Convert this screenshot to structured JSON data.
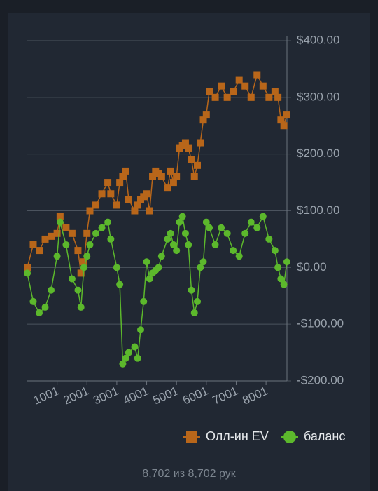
{
  "chart_data": {
    "type": "line",
    "x": [
      1,
      200,
      400,
      600,
      800,
      1000,
      1100,
      1300,
      1500,
      1700,
      1800,
      1900,
      2000,
      2100,
      2300,
      2500,
      2700,
      2800,
      3000,
      3100,
      3200,
      3300,
      3400,
      3600,
      3700,
      3800,
      3900,
      4000,
      4100,
      4200,
      4300,
      4400,
      4500,
      4700,
      4800,
      4900,
      5000,
      5100,
      5200,
      5300,
      5400,
      5500,
      5600,
      5700,
      5800,
      5900,
      6000,
      6100,
      6300,
      6500,
      6700,
      6900,
      7100,
      7300,
      7500,
      7700,
      7900,
      8100,
      8300,
      8400,
      8500,
      8600,
      8700
    ],
    "series": [
      {
        "name": "Олл-ин EV",
        "color": "#b8661a",
        "marker": "square",
        "values": [
          0,
          40,
          30,
          50,
          55,
          60,
          90,
          70,
          60,
          30,
          -10,
          10,
          60,
          100,
          110,
          130,
          150,
          130,
          110,
          150,
          160,
          170,
          120,
          100,
          110,
          120,
          125,
          130,
          100,
          160,
          170,
          165,
          160,
          140,
          170,
          150,
          160,
          210,
          215,
          220,
          210,
          190,
          160,
          180,
          220,
          260,
          270,
          310,
          300,
          320,
          300,
          310,
          330,
          320,
          300,
          340,
          320,
          300,
          310,
          300,
          260,
          250,
          270
        ]
      },
      {
        "name": "баланс",
        "color": "#5cb82c",
        "marker": "circle",
        "values": [
          -10,
          -60,
          -80,
          -70,
          -40,
          20,
          80,
          40,
          -20,
          -40,
          -70,
          0,
          20,
          40,
          60,
          70,
          80,
          50,
          0,
          -30,
          -170,
          -160,
          -150,
          -140,
          -160,
          -110,
          -60,
          10,
          -20,
          -10,
          -5,
          0,
          20,
          50,
          60,
          40,
          30,
          80,
          90,
          60,
          40,
          -40,
          -80,
          -60,
          0,
          10,
          80,
          70,
          40,
          70,
          60,
          30,
          20,
          60,
          80,
          70,
          90,
          50,
          30,
          0,
          -20,
          -30,
          10
        ]
      }
    ],
    "xlim": [
      1,
      8702
    ],
    "xticks": [
      1001,
      2001,
      3001,
      4001,
      5001,
      6001,
      7001,
      8001
    ],
    "ylim": [
      -200,
      400
    ],
    "yticks": [
      {
        "value": -200,
        "label": "-$200.00"
      },
      {
        "value": -100,
        "label": "-$100.00"
      },
      {
        "value": 0,
        "label": "$0.00"
      },
      {
        "value": 100,
        "label": "$100.00"
      },
      {
        "value": 200,
        "label": "$200.00"
      },
      {
        "value": 300,
        "label": "$300.00"
      },
      {
        "value": 400,
        "label": "$400.00"
      }
    ],
    "grid": true,
    "legend": "bottom-right"
  },
  "footer": "8,702 из 8,702 рук"
}
